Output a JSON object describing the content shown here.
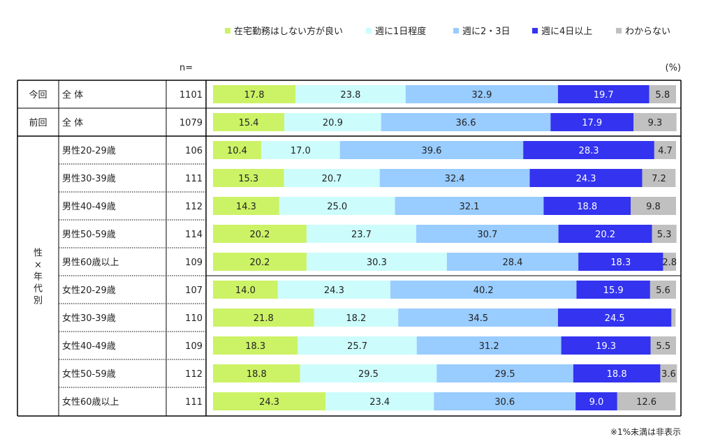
{
  "chart_data": {
    "type": "bar",
    "stacked": true,
    "orientation": "horizontal",
    "percent_scale": [
      0,
      100
    ],
    "n_header": "n=",
    "unit_label": "(%)",
    "footnote": "※1%未満は非表示",
    "legend_position": "top-right",
    "series": [
      {
        "name": "在宅勤務はしない方が良い",
        "color": "#ccf266"
      },
      {
        "name": "週に1日程度",
        "color": "#ccfcfc"
      },
      {
        "name": "週に2・3日",
        "color": "#99ccff"
      },
      {
        "name": "週に4日以上",
        "color": "#3333f0"
      },
      {
        "name": "わからない",
        "color": "#c0c0c0"
      }
    ],
    "rows": [
      {
        "group": "今回",
        "label": "全 体",
        "n": "1101",
        "values": [
          17.8,
          23.8,
          32.9,
          19.7,
          5.8
        ]
      },
      {
        "group": "前回",
        "label": "全 体",
        "n": "1079",
        "values": [
          15.4,
          20.9,
          36.6,
          17.9,
          9.3
        ]
      },
      {
        "group": "性×年代別",
        "label": "男性20-29歳",
        "n": "106",
        "values": [
          10.4,
          17.0,
          39.6,
          28.3,
          4.7
        ]
      },
      {
        "group": "性×年代別",
        "label": "男性30-39歳",
        "n": "111",
        "values": [
          15.3,
          20.7,
          32.4,
          24.3,
          7.2
        ]
      },
      {
        "group": "性×年代別",
        "label": "男性40-49歳",
        "n": "112",
        "values": [
          14.3,
          25.0,
          32.1,
          18.8,
          9.8
        ]
      },
      {
        "group": "性×年代別",
        "label": "男性50-59歳",
        "n": "114",
        "values": [
          20.2,
          23.7,
          30.7,
          20.2,
          5.3
        ]
      },
      {
        "group": "性×年代別",
        "label": "男性60歳以上",
        "n": "109",
        "values": [
          20.2,
          30.3,
          28.4,
          18.3,
          2.8
        ]
      },
      {
        "group": "性×年代別",
        "label": "女性20-29歳",
        "n": "107",
        "values": [
          14.0,
          24.3,
          40.2,
          15.9,
          5.6
        ]
      },
      {
        "group": "性×年代別",
        "label": "女性30-39歳",
        "n": "110",
        "values": [
          21.8,
          18.2,
          34.5,
          24.5,
          0.9
        ]
      },
      {
        "group": "性×年代別",
        "label": "女性40-49歳",
        "n": "109",
        "values": [
          18.3,
          25.7,
          31.2,
          19.3,
          5.5
        ]
      },
      {
        "group": "性×年代別",
        "label": "女性50-59歳",
        "n": "112",
        "values": [
          18.8,
          29.5,
          29.5,
          18.8,
          3.6
        ]
      },
      {
        "group": "性×年代別",
        "label": "女性60歳以上",
        "n": "111",
        "values": [
          24.3,
          23.4,
          30.6,
          9.0,
          12.6
        ]
      }
    ]
  }
}
